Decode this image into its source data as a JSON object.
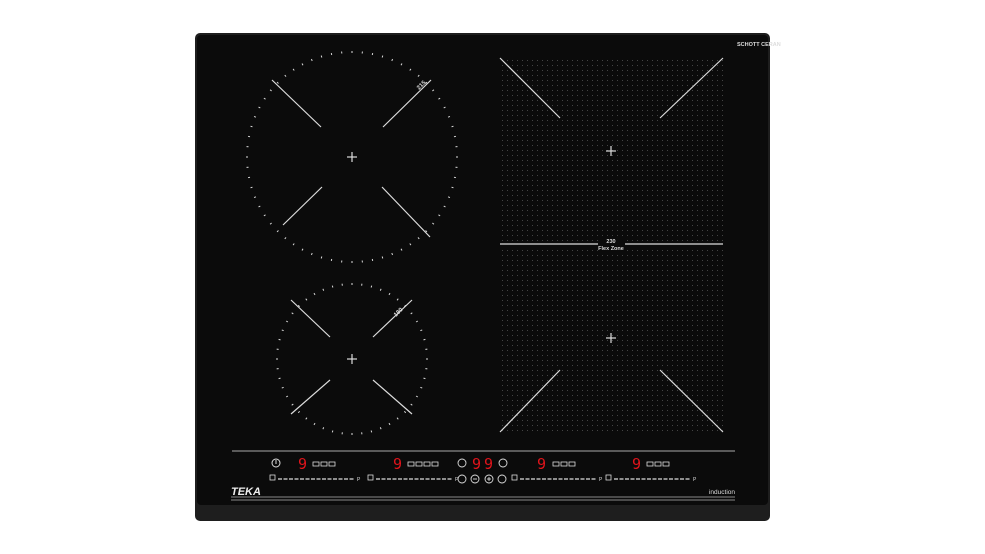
{
  "brand": {
    "name": "TEKA",
    "type_label": "induction",
    "glass_logo": "SCHOTT CERAN"
  },
  "colors": {
    "glass": "#0b0b0b",
    "frame": "#1e1e1e",
    "display": "#e0141b",
    "markings": "#dddddd"
  },
  "zones": [
    {
      "id": "front-left-large",
      "size_label": "215"
    },
    {
      "id": "rear-left-small",
      "size_label": "180"
    },
    {
      "id": "flex-zone",
      "size_label": "230",
      "name": "Flex Zone"
    }
  ],
  "controls": {
    "zone_displays": [
      {
        "value": "9",
        "icons": [
          "pot-icon",
          "pan-icon",
          "grill-icon"
        ]
      },
      {
        "value": "9",
        "icons": [
          "steam-icon",
          "pot-icon",
          "pan-icon",
          "grill-icon"
        ]
      },
      {
        "value": "9",
        "icons": [
          "pot-icon",
          "pan-icon",
          "grill-icon"
        ]
      },
      {
        "value": "9",
        "icons": [
          "pot-icon",
          "pan-icon",
          "grill-icon"
        ]
      }
    ],
    "timer_display": [
      "9",
      "9"
    ],
    "slider_end_label": "P",
    "buttons": [
      "power-button",
      "lock-button",
      "timer-button",
      "minus-button",
      "plus-button",
      "pause-button",
      "menu-button"
    ]
  }
}
